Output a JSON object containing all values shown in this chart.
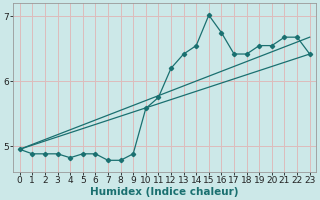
{
  "title": "",
  "xlabel": "Humidex (Indice chaleur)",
  "x": [
    0,
    1,
    2,
    3,
    4,
    5,
    6,
    7,
    8,
    9,
    10,
    11,
    12,
    13,
    14,
    15,
    16,
    17,
    18,
    19,
    20,
    21,
    22,
    23
  ],
  "line1": [
    4.95,
    4.88,
    4.88,
    4.88,
    4.82,
    4.88,
    4.88,
    4.78,
    4.78,
    4.88,
    5.58,
    5.75,
    6.2,
    6.42,
    6.55,
    7.02,
    6.75,
    6.42,
    6.42,
    6.55,
    6.55,
    6.68,
    6.68,
    6.42
  ],
  "line2_x": [
    0,
    23
  ],
  "line2_y": [
    4.95,
    6.42
  ],
  "line3_x": [
    0,
    23
  ],
  "line3_y": [
    4.95,
    6.68
  ],
  "bg_color": "#cce8e8",
  "grid_color": "#ddbbbb",
  "line_color": "#1a7070",
  "xlim": [
    -0.5,
    23.5
  ],
  "ylim": [
    4.6,
    7.2
  ],
  "yticks": [
    5,
    6,
    7
  ],
  "xticks": [
    0,
    1,
    2,
    3,
    4,
    5,
    6,
    7,
    8,
    9,
    10,
    11,
    12,
    13,
    14,
    15,
    16,
    17,
    18,
    19,
    20,
    21,
    22,
    23
  ],
  "tick_fontsize": 6.5,
  "label_fontsize": 7.5
}
